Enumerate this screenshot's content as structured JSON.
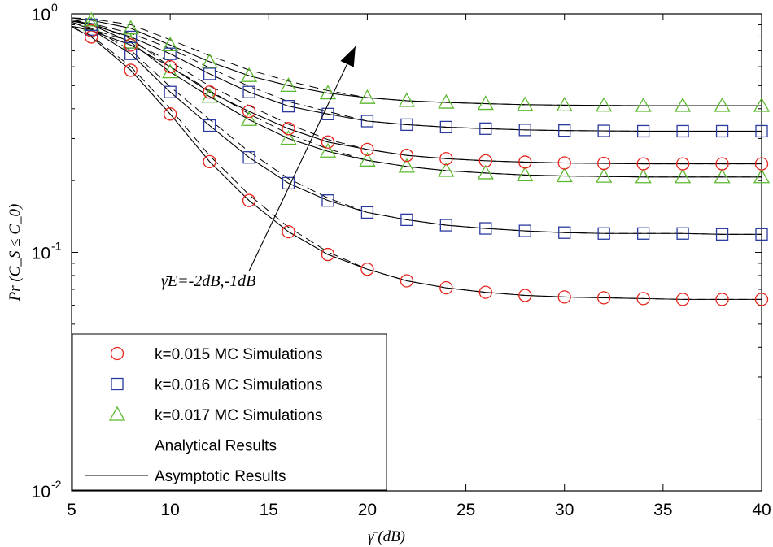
{
  "chart_data": {
    "type": "line",
    "title": "",
    "xlabel": "γ̄ (dB)",
    "ylabel": "Pr (C_S ≤ C_0)",
    "xlim": [
      5,
      40
    ],
    "ylim": [
      0.01,
      1
    ],
    "yscale": "log",
    "xticks": [
      "5",
      "10",
      "15",
      "20",
      "25",
      "30",
      "35",
      "40"
    ],
    "yticks": [
      {
        "base": "10",
        "exp": "0"
      },
      {
        "base": "10",
        "exp": "-1"
      },
      {
        "base": "10",
        "exp": "-2"
      }
    ],
    "x": [
      6,
      8,
      10,
      12,
      14,
      16,
      18,
      20,
      22,
      24,
      26,
      28,
      30,
      32,
      34,
      36,
      38,
      40
    ],
    "series": [
      {
        "name": "k=0.015, γ̄E=-2dB",
        "marker": "circle",
        "color": "#e8231c",
        "values": [
          0.8,
          0.58,
          0.38,
          0.24,
          0.165,
          0.122,
          0.098,
          0.085,
          0.076,
          0.071,
          0.068,
          0.066,
          0.065,
          0.0645,
          0.064,
          0.0635,
          0.0635,
          0.0635
        ]
      },
      {
        "name": "k=0.016, γ̄E=-2dB",
        "marker": "square",
        "color": "#2a3a9e",
        "values": [
          0.86,
          0.68,
          0.47,
          0.34,
          0.25,
          0.195,
          0.165,
          0.147,
          0.137,
          0.13,
          0.126,
          0.123,
          0.121,
          0.12,
          0.12,
          0.12,
          0.119,
          0.119
        ]
      },
      {
        "name": "k=0.017, γ̄E=-2dB",
        "marker": "triangle",
        "color": "#5cb82e",
        "values": [
          0.9,
          0.76,
          0.57,
          0.45,
          0.36,
          0.3,
          0.265,
          0.243,
          0.229,
          0.22,
          0.215,
          0.211,
          0.209,
          0.208,
          0.207,
          0.207,
          0.207,
          0.207
        ]
      },
      {
        "name": "k=0.015, γ̄E=-1dB",
        "marker": "circle",
        "color": "#e8231c",
        "values": [
          0.85,
          0.74,
          0.6,
          0.47,
          0.39,
          0.33,
          0.29,
          0.27,
          0.255,
          0.247,
          0.242,
          0.239,
          0.237,
          0.236,
          0.235,
          0.235,
          0.235,
          0.235
        ]
      },
      {
        "name": "k=0.016, γ̄E=-1dB",
        "marker": "square",
        "color": "#2a3a9e",
        "values": [
          0.9,
          0.8,
          0.68,
          0.56,
          0.47,
          0.41,
          0.38,
          0.355,
          0.343,
          0.335,
          0.33,
          0.326,
          0.324,
          0.323,
          0.322,
          0.322,
          0.322,
          0.322
        ]
      },
      {
        "name": "k=0.017, γ̄E=-1dB",
        "marker": "triangle",
        "color": "#5cb82e",
        "values": [
          0.94,
          0.87,
          0.74,
          0.63,
          0.55,
          0.5,
          0.465,
          0.445,
          0.432,
          0.425,
          0.42,
          0.416,
          0.414,
          0.413,
          0.412,
          0.412,
          0.412,
          0.412
        ]
      }
    ],
    "legend": {
      "position": "bottom-left",
      "entries": [
        {
          "label": "k=0.015 MC Simulations",
          "style": "circle",
          "color": "#e8231c"
        },
        {
          "label": "k=0.016 MC Simulations",
          "style": "square",
          "color": "#2a3a9e"
        },
        {
          "label": "k=0.017 MC Simulations",
          "style": "triangle",
          "color": "#5cb82e"
        },
        {
          "label": "Analytical   Results",
          "style": "dashed",
          "color": "#000000"
        },
        {
          "label": "Asymptotic Results",
          "style": "solid",
          "color": "#000000"
        }
      ]
    },
    "annotation": {
      "text": "γ̄E=-2dB,-1dB",
      "arrow_from": [
        14,
        0.0835
      ],
      "arrow_to": [
        19.4,
        0.73
      ]
    }
  }
}
